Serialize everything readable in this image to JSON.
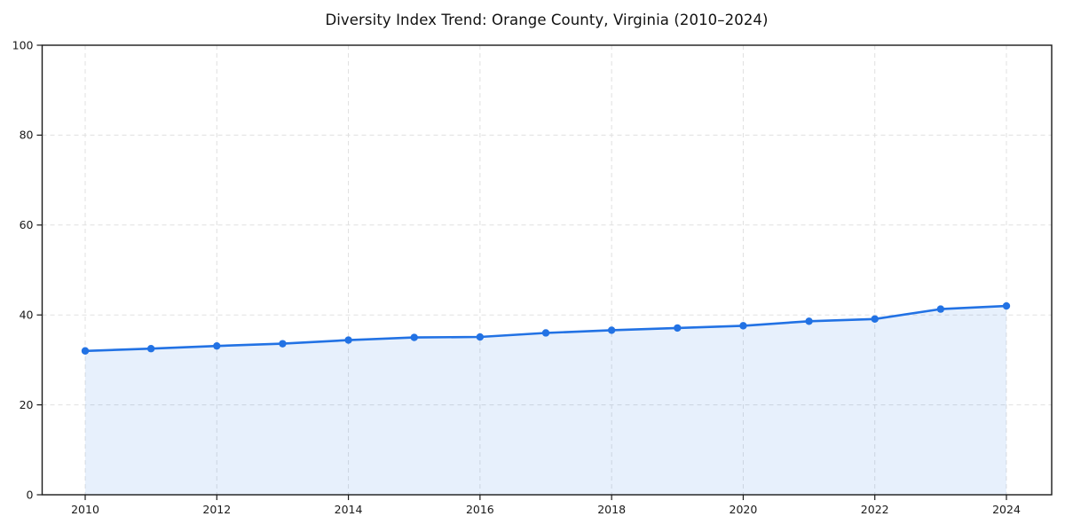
{
  "page": {
    "background_color": "#ffffff"
  },
  "chart_data": {
    "type": "area",
    "title": "Diversity Index Trend: Orange County, Virginia (2010–2024)",
    "x": [
      2010,
      2011,
      2012,
      2013,
      2014,
      2015,
      2016,
      2017,
      2018,
      2019,
      2020,
      2021,
      2022,
      2023,
      2024
    ],
    "series": [
      {
        "name": "Diversity Index",
        "values": [
          32.0,
          32.5,
          33.1,
          33.6,
          34.4,
          35.0,
          35.1,
          36.0,
          36.6,
          37.1,
          37.6,
          38.6,
          39.1,
          41.3,
          42.0
        ]
      }
    ],
    "xlabel": "",
    "ylabel": "",
    "ylim": [
      0,
      100
    ],
    "yticks": [
      0,
      20,
      40,
      60,
      80,
      100
    ],
    "xticks": [
      2010,
      2012,
      2014,
      2016,
      2018,
      2020,
      2022,
      2024
    ],
    "grid": true,
    "grid_style": "dashed",
    "legend": "none",
    "marker": "circle",
    "line_color": "#2272e4",
    "fill_color": "rgba(34, 114, 228, 0.11)",
    "grid_color": "#e0e0e0",
    "axis_color": "#1a1a1a"
  }
}
